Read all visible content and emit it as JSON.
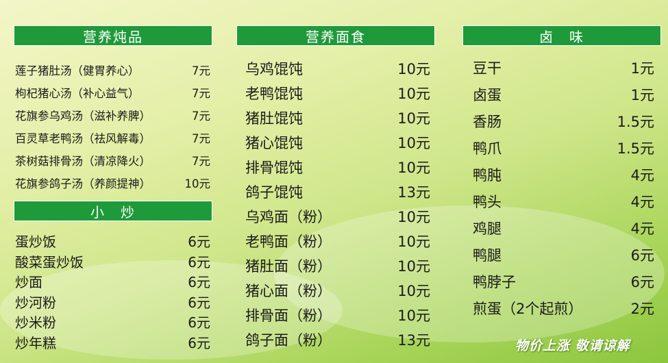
{
  "sections": [
    {
      "title": "营养炖品",
      "items": [
        {
          "name": "莲子猪肚汤（健胃养心）",
          "price": "7元"
        },
        {
          "name": "枸杞猪心汤（补心益气）",
          "price": "7元"
        },
        {
          "name": "花旗参乌鸡汤（滋补养脾）",
          "price": "7元"
        },
        {
          "name": "百灵草老鸭汤（祛风解毒）",
          "price": "7元"
        },
        {
          "name": "茶树菇排骨汤（清凉降火）",
          "price": "7元"
        },
        {
          "name": "花旗参鸽子汤（养颜提神）",
          "price": "10元"
        }
      ]
    },
    {
      "title": "小　炒",
      "items": [
        {
          "name": "蛋炒饭",
          "price": "6元"
        },
        {
          "name": "酸菜蛋炒饭",
          "price": "6元"
        },
        {
          "name": "炒面",
          "price": "6元"
        },
        {
          "name": "炒河粉",
          "price": "6元"
        },
        {
          "name": "炒米粉",
          "price": "6元"
        },
        {
          "name": "炒年糕",
          "price": "6元"
        }
      ]
    },
    {
      "title": "营养面食",
      "items": [
        {
          "name": "乌鸡馄饨",
          "price": "10元"
        },
        {
          "name": "老鸭馄饨",
          "price": "10元"
        },
        {
          "name": "猪肚馄饨",
          "price": "10元"
        },
        {
          "name": "猪心馄饨",
          "price": "10元"
        },
        {
          "name": "排骨馄饨",
          "price": "10元"
        },
        {
          "name": "鸽子馄饨",
          "price": "13元"
        },
        {
          "name": "乌鸡面（粉）",
          "price": "10元"
        },
        {
          "name": "老鸭面（粉）",
          "price": "10元"
        },
        {
          "name": "猪肚面（粉）",
          "price": "10元"
        },
        {
          "name": "猪心面（粉）",
          "price": "10元"
        },
        {
          "name": "排骨面（粉）",
          "price": "10元"
        },
        {
          "name": "鸽子面（粉）",
          "price": "13元"
        }
      ]
    },
    {
      "title": "卤　味",
      "items": [
        {
          "name": "豆干",
          "price": "1元"
        },
        {
          "name": "卤蛋",
          "price": "1元"
        },
        {
          "name": "香肠",
          "price": "1.5元"
        },
        {
          "name": "鸭爪",
          "price": "1.5元"
        },
        {
          "name": "鸭肫",
          "price": "4元"
        },
        {
          "name": "鸭头",
          "price": "4元"
        },
        {
          "name": "鸡腿",
          "price": "4元"
        },
        {
          "name": "鸭腿",
          "price": "6元"
        },
        {
          "name": "鸭脖子",
          "price": "6元"
        },
        {
          "name": "煎蛋（2个起煎）",
          "price": "2元"
        }
      ]
    }
  ],
  "footer": "物价上涨  敬请谅解",
  "colors": {
    "header": "#1f9a3a",
    "header_text": "#ffffff"
  }
}
